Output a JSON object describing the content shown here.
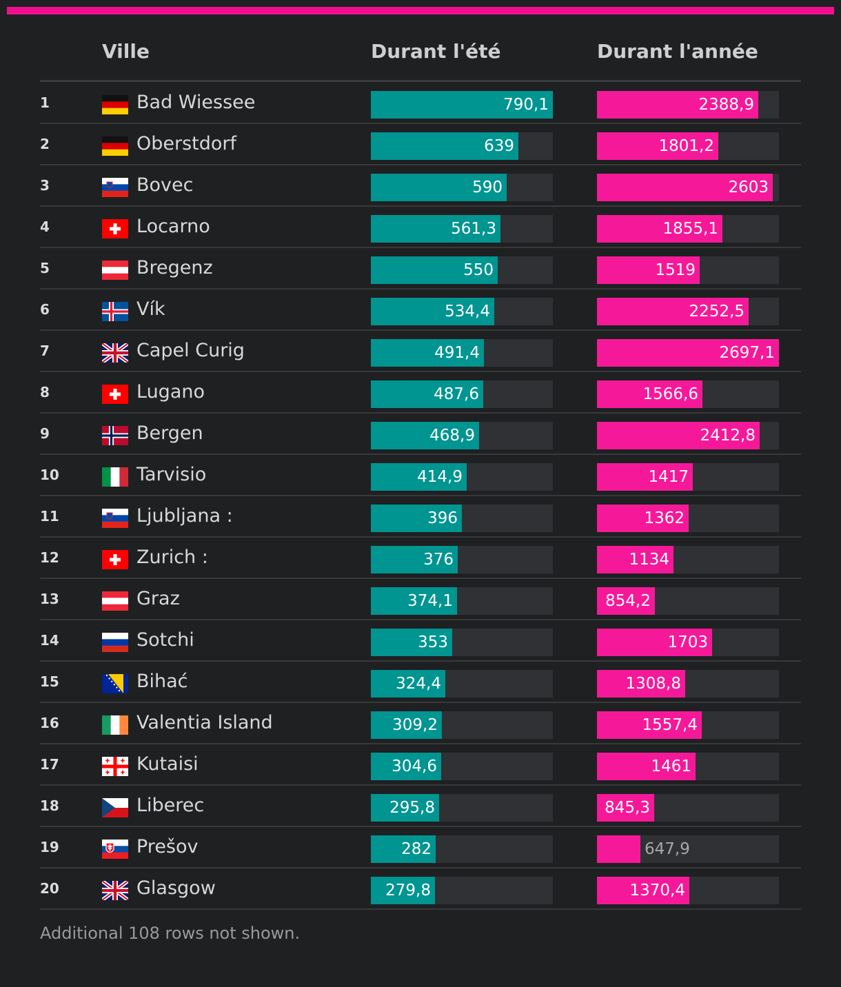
{
  "accent_color": "#f20f8f",
  "header": {
    "ville": "Ville",
    "ete": "Durant l'été",
    "annee": "Durant l'année"
  },
  "chart_data": {
    "type": "bar",
    "max_summer": 790.1,
    "max_year": 2697.1,
    "rows": [
      {
        "rank": "1",
        "flag": "de",
        "city": "Bad Wiessee",
        "summer": 790.1,
        "summer_label": "790,1",
        "year": 2388.9,
        "year_label": "2388,9"
      },
      {
        "rank": "2",
        "flag": "de",
        "city": "Oberstdorf",
        "summer": 639,
        "summer_label": "639",
        "year": 1801.2,
        "year_label": "1801,2"
      },
      {
        "rank": "3",
        "flag": "si",
        "city": "Bovec",
        "summer": 590,
        "summer_label": "590",
        "year": 2603,
        "year_label": "2603"
      },
      {
        "rank": "4",
        "flag": "ch",
        "city": "Locarno",
        "summer": 561.3,
        "summer_label": "561,3",
        "year": 1855.1,
        "year_label": "1855,1"
      },
      {
        "rank": "5",
        "flag": "at",
        "city": "Bregenz",
        "summer": 550,
        "summer_label": "550",
        "year": 1519,
        "year_label": "1519"
      },
      {
        "rank": "6",
        "flag": "is",
        "city": "Vík",
        "summer": 534.4,
        "summer_label": "534,4",
        "year": 2252.5,
        "year_label": "2252,5"
      },
      {
        "rank": "7",
        "flag": "gb",
        "city": "Capel Curig",
        "summer": 491.4,
        "summer_label": "491,4",
        "year": 2697.1,
        "year_label": "2697,1"
      },
      {
        "rank": "8",
        "flag": "ch",
        "city": "Lugano",
        "summer": 487.6,
        "summer_label": "487,6",
        "year": 1566.6,
        "year_label": "1566,6"
      },
      {
        "rank": "9",
        "flag": "no",
        "city": "Bergen",
        "summer": 468.9,
        "summer_label": "468,9",
        "year": 2412.8,
        "year_label": "2412,8"
      },
      {
        "rank": "10",
        "flag": "it",
        "city": "Tarvisio",
        "summer": 414.9,
        "summer_label": "414,9",
        "year": 1417,
        "year_label": "1417"
      },
      {
        "rank": "11",
        "flag": "si",
        "city": "Ljubljana :",
        "summer": 396,
        "summer_label": "396",
        "year": 1362,
        "year_label": "1362"
      },
      {
        "rank": "12",
        "flag": "ch",
        "city": "Zurich :",
        "summer": 376,
        "summer_label": "376",
        "year": 1134,
        "year_label": "1134"
      },
      {
        "rank": "13",
        "flag": "at",
        "city": "Graz",
        "summer": 374.1,
        "summer_label": "374,1",
        "year": 854.2,
        "year_label": "854,2"
      },
      {
        "rank": "14",
        "flag": "ru",
        "city": "Sotchi",
        "summer": 353,
        "summer_label": "353",
        "year": 1703,
        "year_label": "1703"
      },
      {
        "rank": "15",
        "flag": "ba",
        "city": "Bihać",
        "summer": 324.4,
        "summer_label": "324,4",
        "year": 1308.8,
        "year_label": "1308,8"
      },
      {
        "rank": "16",
        "flag": "ie",
        "city": "Valentia Island",
        "summer": 309.2,
        "summer_label": "309,2",
        "year": 1557.4,
        "year_label": "1557,4"
      },
      {
        "rank": "17",
        "flag": "ge",
        "city": "Kutaisi",
        "summer": 304.6,
        "summer_label": "304,6",
        "year": 1461,
        "year_label": "1461"
      },
      {
        "rank": "18",
        "flag": "cz",
        "city": "Liberec",
        "summer": 295.8,
        "summer_label": "295,8",
        "year": 845.3,
        "year_label": "845,3"
      },
      {
        "rank": "19",
        "flag": "sk",
        "city": "Prešov",
        "summer": 282,
        "summer_label": "282",
        "year": 647.9,
        "year_label": "647,9"
      },
      {
        "rank": "20",
        "flag": "gb",
        "city": "Glasgow",
        "summer": 279.8,
        "summer_label": "279,8",
        "year": 1370.4,
        "year_label": "1370,4"
      }
    ]
  },
  "footer": "Additional 108 rows not shown."
}
